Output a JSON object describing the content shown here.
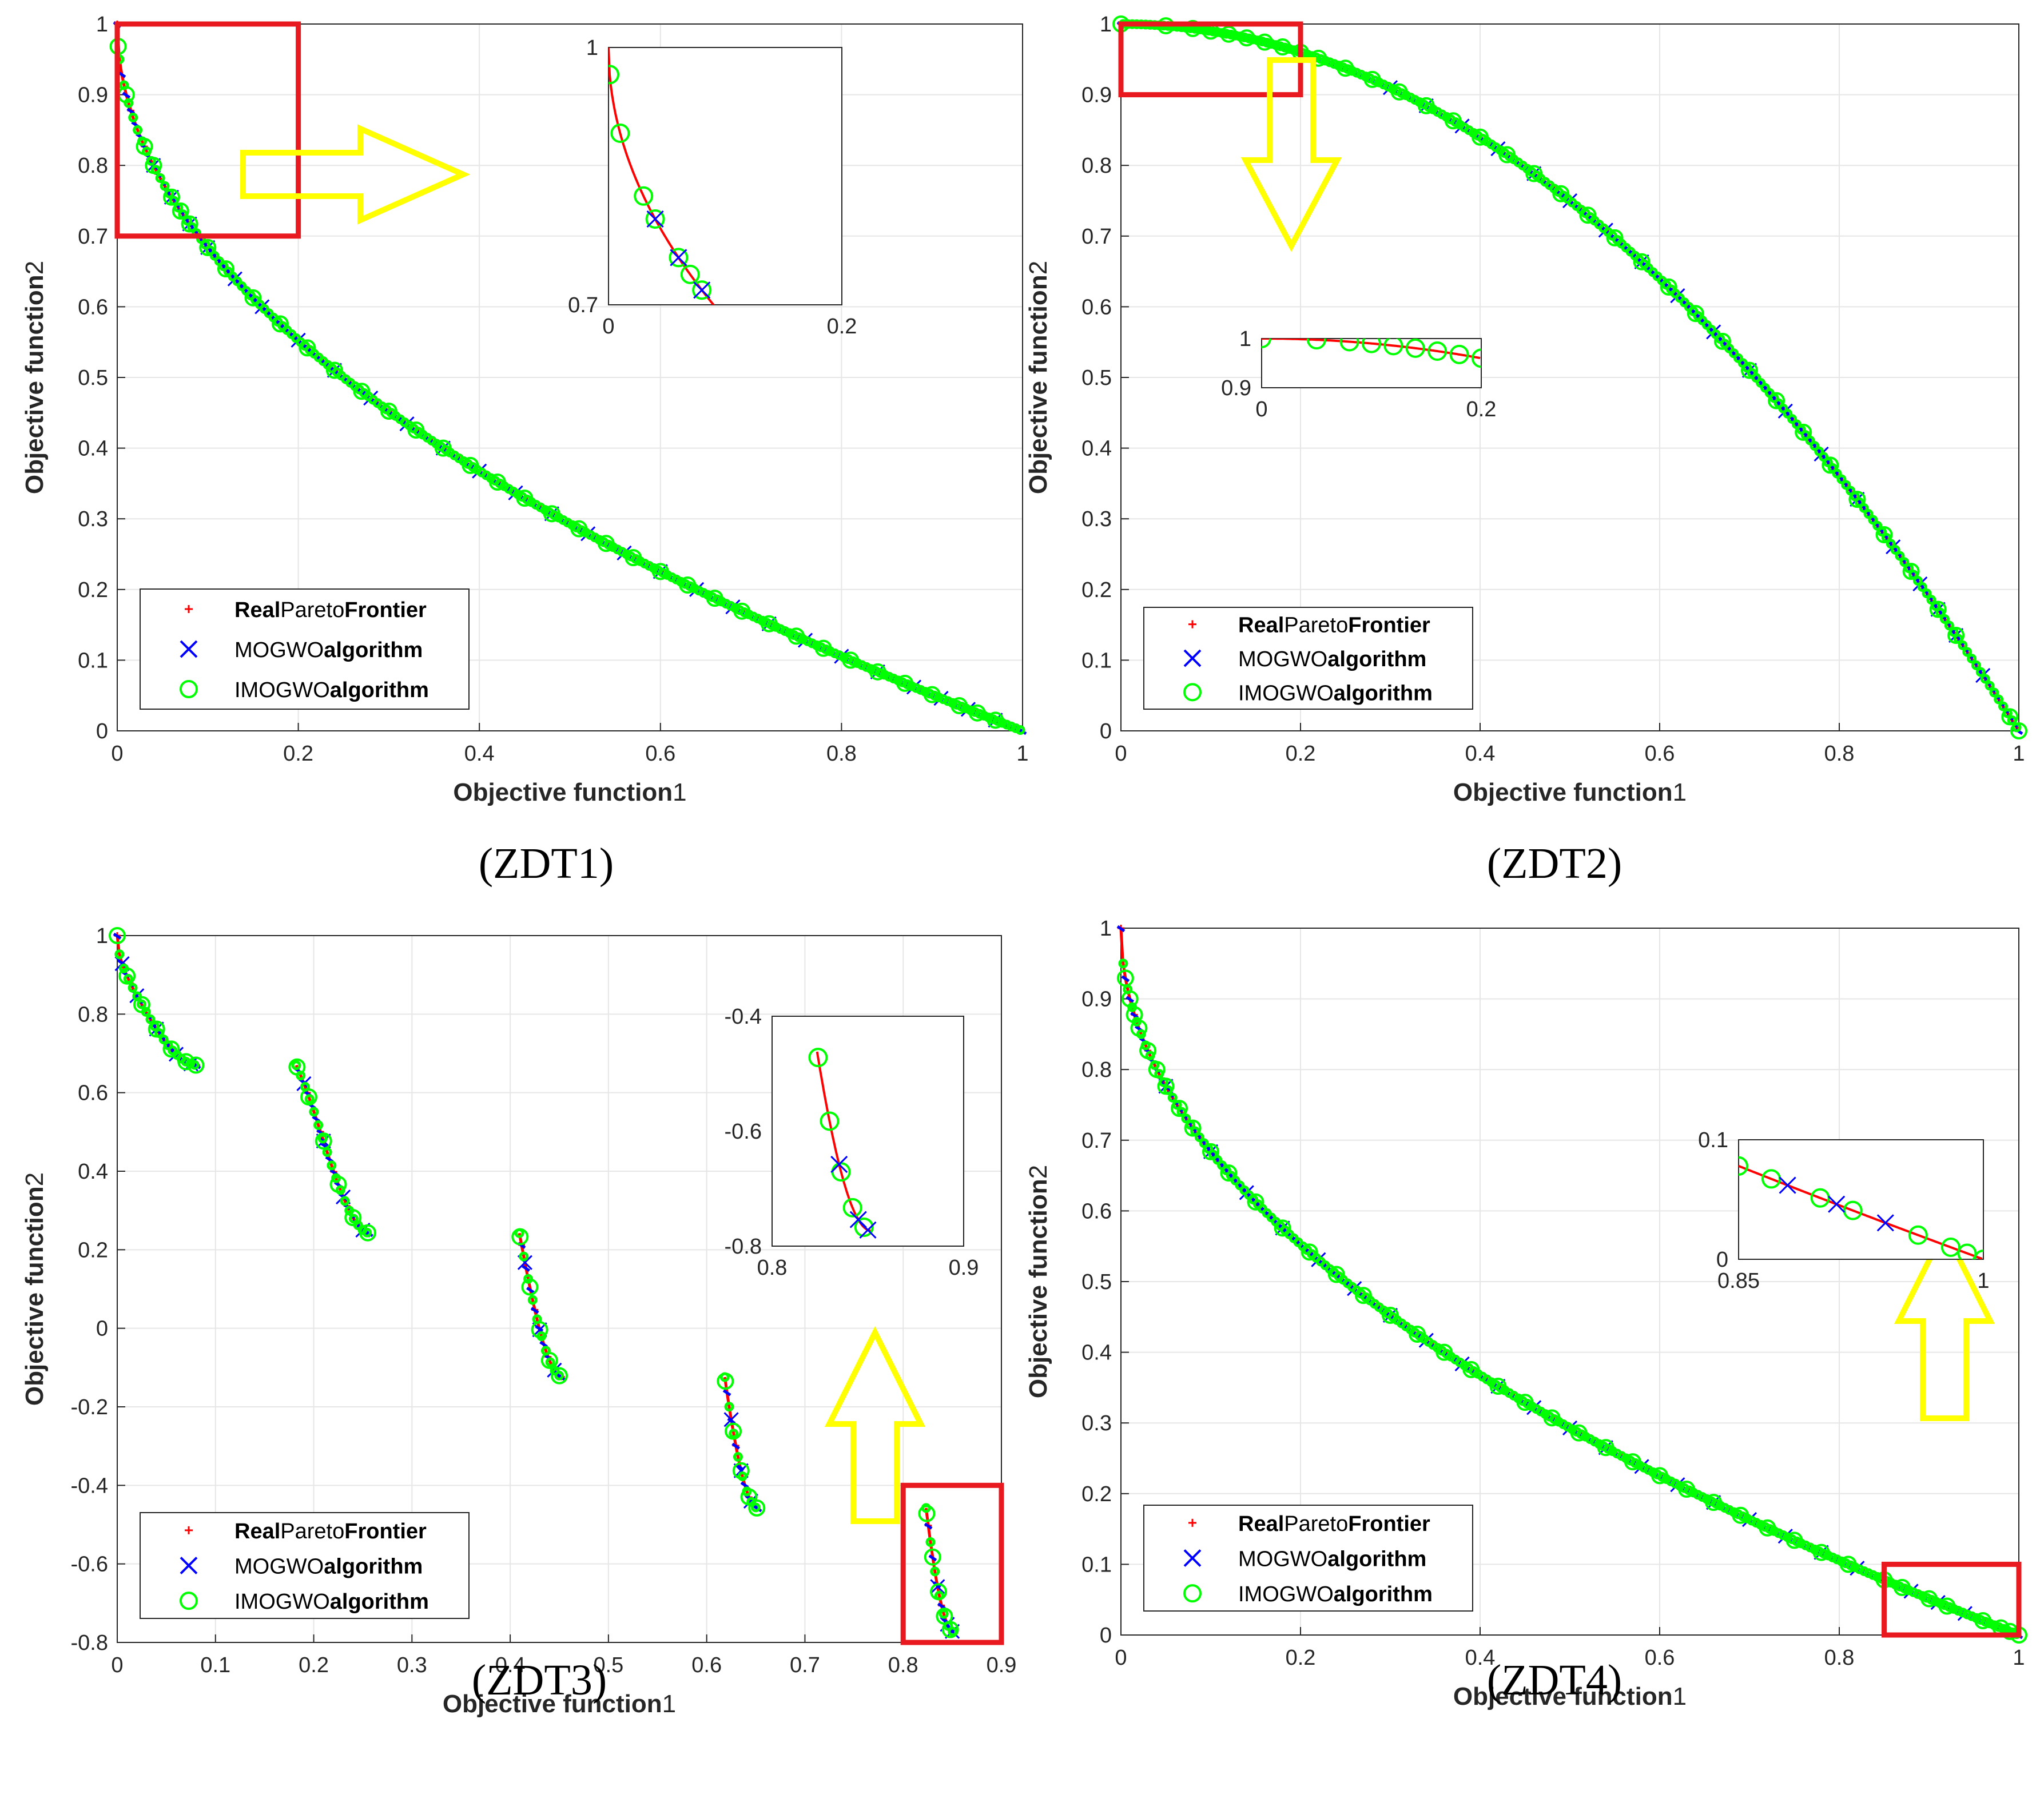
{
  "legend": {
    "entries": [
      {
        "parts": [
          {
            "text": "Real",
            "bold": true
          },
          {
            "text": "Pareto",
            "bold": false
          },
          {
            "text": "Frontier",
            "bold": true
          }
        ],
        "color": "#ff0000",
        "marker": "plus"
      },
      {
        "parts": [
          {
            "text": "MOGWO",
            "bold": false
          },
          {
            "text": "algorithm",
            "bold": true
          }
        ],
        "color": "#0000ff",
        "marker": "x"
      },
      {
        "parts": [
          {
            "text": "IMOGWO",
            "bold": false
          },
          {
            "text": "algorithm",
            "bold": true
          }
        ],
        "color": "#00ff00",
        "marker": "circle"
      }
    ]
  },
  "colors": {
    "real": "#ff0000",
    "mogwo": "#0000ff",
    "imogwo": "#00ff00",
    "highlight": "#e8191f",
    "arrow": "#ffff00",
    "grid": "#e6e6e6"
  },
  "chart_data": [
    {
      "type": "scatter",
      "caption": "(ZDT1)",
      "xlabel_bold": "Objective function",
      "xlabel_num": "1",
      "ylabel_bold": "Objective function",
      "ylabel_num": "2",
      "xlim": [
        0,
        1
      ],
      "ylim": [
        0,
        1
      ],
      "xticks": [
        0,
        0.2,
        0.4,
        0.6,
        0.8,
        1
      ],
      "yticks": [
        0,
        0.1,
        0.2,
        0.3,
        0.4,
        0.5,
        0.6,
        0.7,
        0.8,
        0.9,
        1
      ],
      "xtick_labels": [
        "0",
        "0.2",
        "0.4",
        "0.6",
        "0.8",
        "1"
      ],
      "ytick_labels": [
        "0",
        "0.1",
        "0.2",
        "0.3",
        "0.4",
        "0.5",
        "0.6",
        "0.7",
        "0.8",
        "0.9",
        "1"
      ],
      "grid": true,
      "legend_position": "bottom-left",
      "arrow": "right",
      "front": "1-sqrt(x)",
      "x_range": [
        0,
        1
      ],
      "highlight_region": {
        "x": [
          0,
          0.2
        ],
        "y": [
          0.7,
          1
        ]
      },
      "inset": {
        "xlim": [
          0,
          0.2
        ],
        "ylim": [
          0.7,
          1
        ],
        "xtick_labels": [
          "0",
          "0.2"
        ],
        "ytick_labels": [
          "0.7",
          "1"
        ]
      },
      "series": [
        {
          "name": "MOGWO algorithm",
          "x_samples": [
            0.04,
            0.06,
            0.08,
            0.1,
            0.13,
            0.16,
            0.2,
            0.24,
            0.28,
            0.32,
            0.36,
            0.4,
            0.44,
            0.48,
            0.52,
            0.56,
            0.6,
            0.64,
            0.68,
            0.72,
            0.76,
            0.8,
            0.84,
            0.88,
            0.91,
            0.94,
            0.97
          ]
        },
        {
          "name": "IMOGWO algorithm",
          "x_samples": [
            0.001,
            0.01,
            0.03,
            0.04,
            0.06,
            0.07,
            0.08,
            0.1,
            0.12,
            0.15,
            0.18,
            0.21,
            0.24,
            0.27,
            0.3,
            0.33,
            0.36,
            0.39,
            0.42,
            0.45,
            0.48,
            0.51,
            0.54,
            0.57,
            0.6,
            0.63,
            0.66,
            0.69,
            0.72,
            0.75,
            0.78,
            0.81,
            0.84,
            0.87,
            0.9,
            0.93,
            0.95,
            0.97
          ]
        }
      ]
    },
    {
      "type": "scatter",
      "caption": "(ZDT2)",
      "xlabel_bold": "Objective function",
      "xlabel_num": "1",
      "ylabel_bold": "Objective function",
      "ylabel_num": "2",
      "xlim": [
        0,
        1
      ],
      "ylim": [
        0,
        1
      ],
      "xticks": [
        0,
        0.2,
        0.4,
        0.6,
        0.8,
        1
      ],
      "yticks": [
        0,
        0.1,
        0.2,
        0.3,
        0.4,
        0.5,
        0.6,
        0.7,
        0.8,
        0.9,
        1
      ],
      "xtick_labels": [
        "0",
        "0.2",
        "0.4",
        "0.6",
        "0.8",
        "1"
      ],
      "ytick_labels": [
        "0",
        "0.1",
        "0.2",
        "0.3",
        "0.4",
        "0.5",
        "0.6",
        "0.7",
        "0.8",
        "0.9",
        "1"
      ],
      "grid": true,
      "legend_position": "bottom-left",
      "arrow": "down",
      "front": "1-x^2",
      "x_range": [
        0,
        1
      ],
      "highlight_region": {
        "x": [
          0,
          0.2
        ],
        "y": [
          0.9,
          1
        ]
      },
      "inset": {
        "xlim": [
          0,
          0.2
        ],
        "ylim": [
          0.9,
          1
        ],
        "xtick_labels": [
          "0",
          "0.2"
        ],
        "ytick_labels": [
          "0.9",
          "1"
        ]
      },
      "series": [
        {
          "name": "MOGWO algorithm",
          "x_samples": [
            0.3,
            0.34,
            0.38,
            0.42,
            0.46,
            0.5,
            0.54,
            0.58,
            0.62,
            0.66,
            0.7,
            0.74,
            0.78,
            0.82,
            0.86,
            0.89,
            0.91,
            0.93,
            0.96
          ]
        },
        {
          "name": "IMOGWO algorithm",
          "x_samples": [
            0.0,
            0.05,
            0.08,
            0.1,
            0.12,
            0.14,
            0.16,
            0.18,
            0.2,
            0.22,
            0.25,
            0.28,
            0.31,
            0.34,
            0.37,
            0.4,
            0.43,
            0.46,
            0.49,
            0.52,
            0.55,
            0.58,
            0.61,
            0.64,
            0.67,
            0.7,
            0.73,
            0.76,
            0.79,
            0.82,
            0.85,
            0.88,
            0.91,
            0.93,
            0.99,
            1.0
          ]
        }
      ]
    },
    {
      "type": "scatter",
      "caption": "(ZDT3)",
      "xlabel_bold": "Objective function",
      "xlabel_num": "1",
      "ylabel_bold": "Objective function",
      "ylabel_num": "2",
      "xlim": [
        0,
        0.9
      ],
      "ylim": [
        -0.8,
        1
      ],
      "xticks": [
        0,
        0.1,
        0.2,
        0.3,
        0.4,
        0.5,
        0.6,
        0.7,
        0.8,
        0.9
      ],
      "yticks": [
        -0.8,
        -0.6,
        -0.4,
        -0.2,
        0,
        0.2,
        0.4,
        0.6,
        0.8,
        1
      ],
      "xtick_labels": [
        "0",
        "0.1",
        "0.2",
        "0.3",
        "0.4",
        "0.5",
        "0.6",
        "0.7",
        "0.8",
        "0.9"
      ],
      "ytick_labels": [
        "-0.8",
        "-0.6",
        "-0.4",
        "-0.2",
        "0",
        "0.2",
        "0.4",
        "0.6",
        "0.8",
        "1"
      ],
      "grid": true,
      "legend_position": "bottom-left",
      "arrow": "up",
      "front": "1-sqrt(x)-x*sin(10*pi*x)",
      "segments": [
        [
          0,
          0.083
        ],
        [
          0.1822,
          0.2578
        ],
        [
          0.4093,
          0.4539
        ],
        [
          0.6184,
          0.6525
        ],
        [
          0.8233,
          0.8518
        ]
      ],
      "highlight_region": {
        "x": [
          0.8,
          0.9
        ],
        "y": [
          -0.8,
          -0.4
        ]
      },
      "inset": {
        "xlim": [
          0.8,
          0.9
        ],
        "ylim": [
          -0.8,
          -0.4
        ],
        "xtick_labels": [
          "0.8",
          "0.9"
        ],
        "ytick_labels": [
          "-0.8",
          "-0.6",
          "-0.4"
        ]
      },
      "series": [
        {
          "name": "MOGWO algorithm",
          "x_samples": [
            0.005,
            0.02,
            0.04,
            0.06,
            0.075,
            0.19,
            0.21,
            0.23,
            0.25,
            0.415,
            0.43,
            0.445,
            0.625,
            0.635,
            0.645,
            0.835,
            0.845,
            0.85
          ]
        },
        {
          "name": "IMOGWO algorithm",
          "x_samples": [
            0.0,
            0.01,
            0.025,
            0.04,
            0.055,
            0.07,
            0.08,
            0.183,
            0.195,
            0.21,
            0.225,
            0.24,
            0.255,
            0.41,
            0.42,
            0.43,
            0.44,
            0.45,
            0.619,
            0.627,
            0.635,
            0.643,
            0.651,
            0.824,
            0.83,
            0.836,
            0.842,
            0.848
          ]
        }
      ]
    },
    {
      "type": "scatter",
      "caption": "(ZDT4)",
      "xlabel_bold": "Objective function",
      "xlabel_num": "1",
      "ylabel_bold": "Objective function",
      "ylabel_num": "2",
      "xlim": [
        0,
        1
      ],
      "ylim": [
        0,
        1
      ],
      "xticks": [
        0,
        0.2,
        0.4,
        0.6,
        0.8,
        1
      ],
      "yticks": [
        0,
        0.1,
        0.2,
        0.3,
        0.4,
        0.5,
        0.6,
        0.7,
        0.8,
        0.9,
        1
      ],
      "xtick_labels": [
        "0",
        "0.2",
        "0.4",
        "0.6",
        "0.8",
        "1"
      ],
      "ytick_labels": [
        "0",
        "0.1",
        "0.2",
        "0.3",
        "0.4",
        "0.5",
        "0.6",
        "0.7",
        "0.8",
        "0.9",
        "1"
      ],
      "grid": true,
      "legend_position": "bottom-left",
      "arrow": "up",
      "front": "1-sqrt(x)",
      "x_range": [
        0,
        1
      ],
      "highlight_region": {
        "x": [
          0.85,
          1
        ],
        "y": [
          0,
          0.1
        ]
      },
      "inset": {
        "xlim": [
          0.85,
          1
        ],
        "ylim": [
          0,
          0.1
        ],
        "xtick_labels": [
          "0.85",
          "1"
        ],
        "ytick_labels": [
          "0",
          "0.1"
        ]
      },
      "series": [
        {
          "name": "MOGWO algorithm",
          "x_samples": [
            0.05,
            0.1,
            0.14,
            0.18,
            0.22,
            0.26,
            0.3,
            0.34,
            0.38,
            0.42,
            0.46,
            0.5,
            0.54,
            0.58,
            0.62,
            0.66,
            0.7,
            0.74,
            0.78,
            0.82,
            0.88,
            0.91,
            0.94
          ]
        },
        {
          "name": "IMOGWO algorithm",
          "x_samples": [
            0.005,
            0.01,
            0.015,
            0.02,
            0.03,
            0.04,
            0.05,
            0.065,
            0.08,
            0.1,
            0.12,
            0.15,
            0.18,
            0.21,
            0.24,
            0.27,
            0.3,
            0.33,
            0.36,
            0.39,
            0.42,
            0.45,
            0.48,
            0.51,
            0.54,
            0.57,
            0.6,
            0.63,
            0.66,
            0.69,
            0.72,
            0.75,
            0.78,
            0.81,
            0.85,
            0.87,
            0.9,
            0.92,
            0.96,
            0.98,
            0.99,
            1.0
          ]
        }
      ]
    }
  ]
}
